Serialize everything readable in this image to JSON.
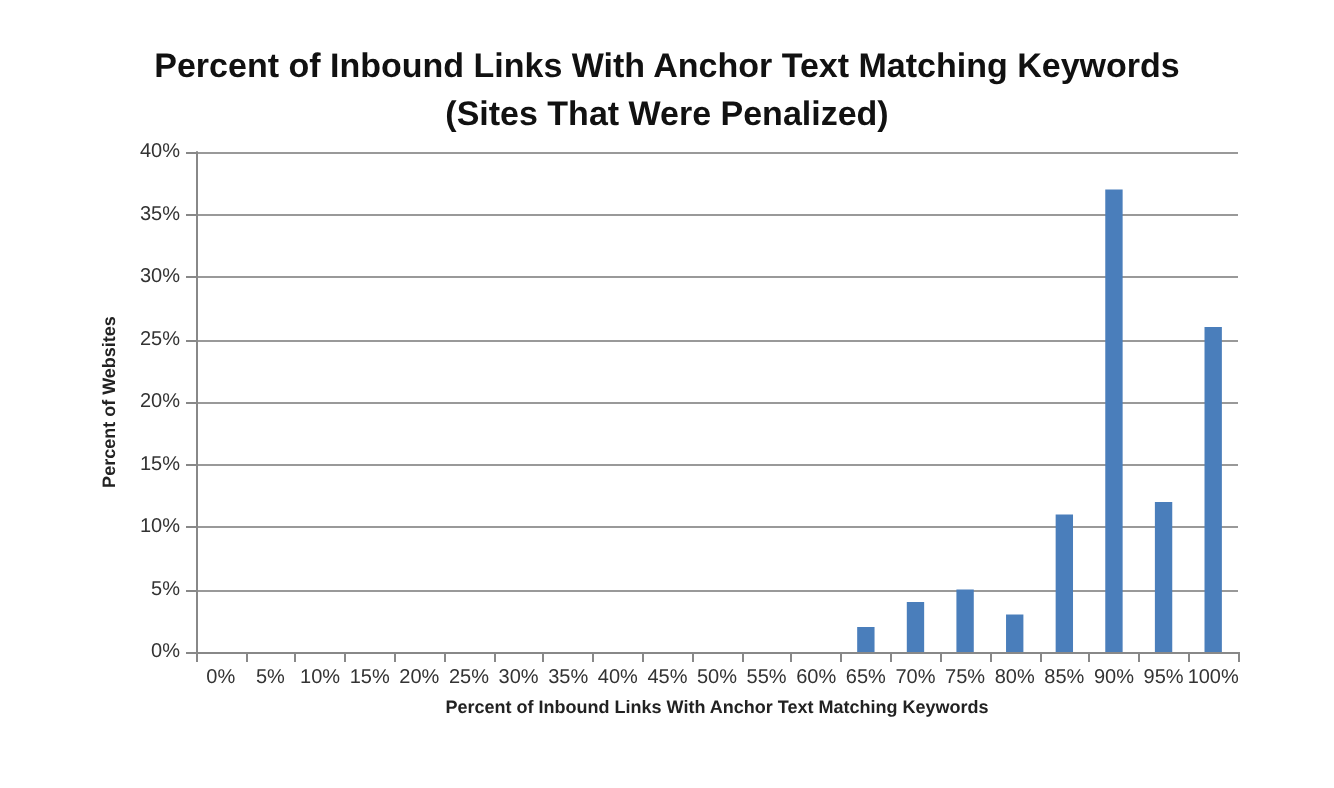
{
  "chart_data": {
    "type": "bar",
    "title": "Percent of Inbound Links With Anchor Text Matching Keywords\n(Sites That Were Penalized)",
    "xlabel": "Percent of Inbound Links With Anchor Text Matching Keywords",
    "ylabel": "Percent of Websites",
    "categories": [
      "0%",
      "5%",
      "10%",
      "15%",
      "20%",
      "25%",
      "30%",
      "35%",
      "40%",
      "45%",
      "50%",
      "55%",
      "60%",
      "65%",
      "70%",
      "75%",
      "80%",
      "85%",
      "90%",
      "95%",
      "100%"
    ],
    "values": [
      0,
      0,
      0,
      0,
      0,
      0,
      0,
      0,
      0,
      0,
      0,
      0,
      0,
      2,
      4,
      5,
      3,
      11,
      37,
      12,
      26
    ],
    "color": "#4a7ebb",
    "ylim": [
      0,
      40
    ],
    "yticks": [
      {
        "value": 0,
        "label": "0%"
      },
      {
        "value": 5,
        "label": "5%"
      },
      {
        "value": 10,
        "label": "10%"
      },
      {
        "value": 15,
        "label": "15%"
      },
      {
        "value": 20,
        "label": "20%"
      },
      {
        "value": 25,
        "label": "25%"
      },
      {
        "value": 30,
        "label": "30%"
      },
      {
        "value": 35,
        "label": "35%"
      },
      {
        "value": 40,
        "label": "40%"
      }
    ],
    "grid": "y"
  }
}
